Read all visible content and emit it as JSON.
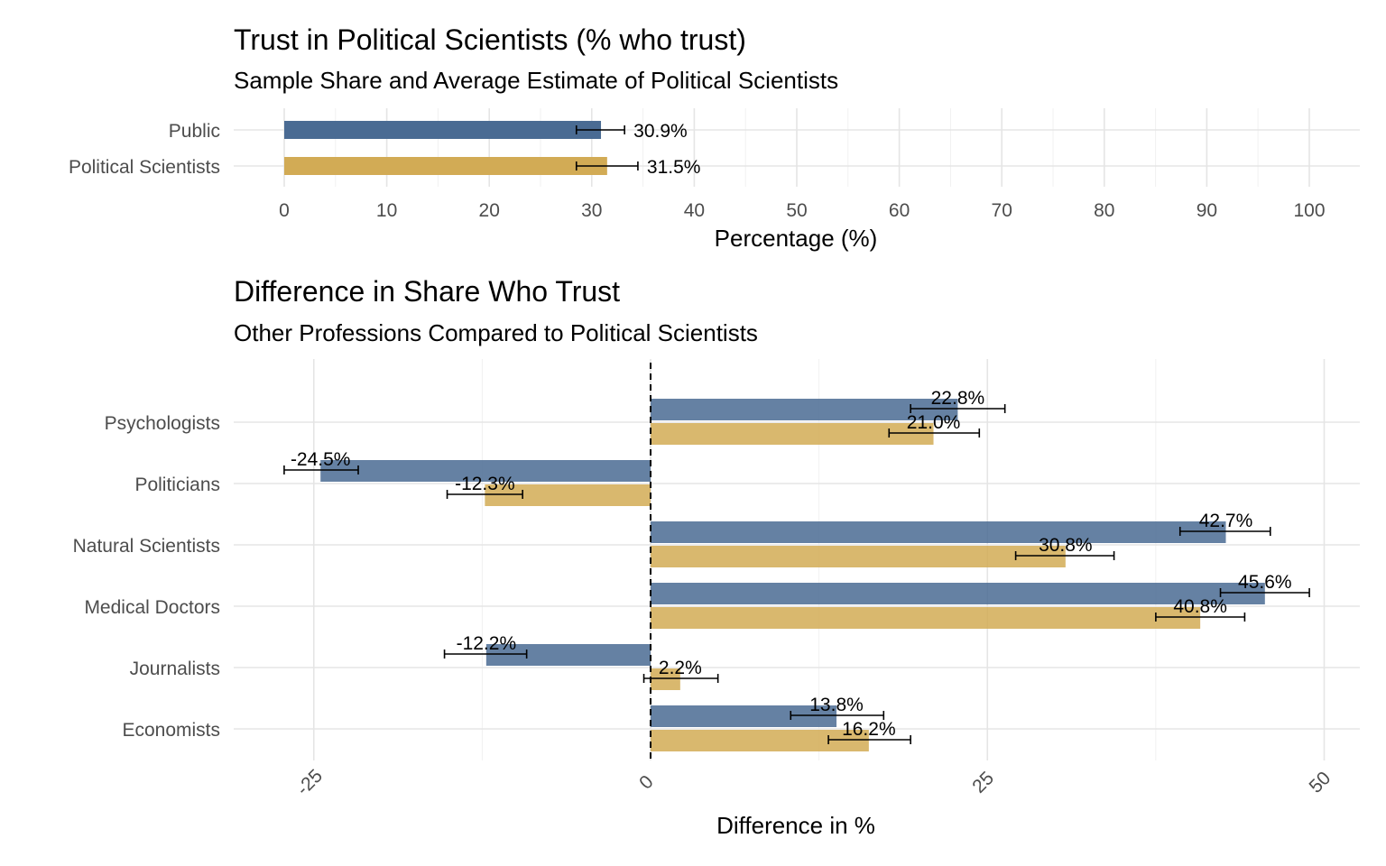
{
  "colors": {
    "public": "#4a6b93",
    "political_scientists": "#d2ab55"
  },
  "chart_data": [
    {
      "type": "bar",
      "orientation": "horizontal",
      "title": "Trust in Political Scientists (% who trust)",
      "subtitle": "Sample Share and Average Estimate of Political Scientists",
      "xlabel": "Percentage (%)",
      "xlim": [
        0,
        100
      ],
      "xticks": [
        0,
        10,
        20,
        30,
        40,
        50,
        60,
        70,
        80,
        90,
        100
      ],
      "categories": [
        "Public",
        "Political Scientists"
      ],
      "values": [
        30.9,
        31.5
      ],
      "error_low": [
        28.5,
        28.5
      ],
      "error_high": [
        33.2,
        34.5
      ],
      "labels": [
        "30.9%",
        "31.5%"
      ],
      "grid": true
    },
    {
      "type": "bar",
      "orientation": "horizontal",
      "grouped": true,
      "title": "Difference in Share Who Trust",
      "subtitle": "Other Professions Compared to Political Scientists",
      "xlabel": "Difference in  %",
      "xlim": [
        -27,
        50
      ],
      "xticks": [
        -25,
        0,
        25,
        50
      ],
      "reference_line": 0,
      "categories": [
        "Psychologists",
        "Politicians",
        "Natural Scientists",
        "Medical Doctors",
        "Journalists",
        "Economists"
      ],
      "series": [
        {
          "key": "public",
          "values": [
            22.8,
            -24.5,
            42.7,
            45.6,
            -12.2,
            13.8
          ],
          "error_low": [
            19.3,
            -27.2,
            39.3,
            42.3,
            -15.3,
            10.4
          ],
          "error_high": [
            26.3,
            -21.7,
            46.0,
            48.9,
            -9.2,
            17.3
          ],
          "labels": [
            "22.8%",
            "-24.5%",
            "42.7%",
            "45.6%",
            "-12.2%",
            "13.8%"
          ]
        },
        {
          "key": "political_scientists",
          "values": [
            21.0,
            -12.3,
            30.8,
            40.8,
            2.2,
            16.2
          ],
          "error_low": [
            17.7,
            -15.1,
            27.1,
            37.5,
            -0.5,
            13.2
          ],
          "error_high": [
            24.4,
            -9.5,
            34.4,
            44.1,
            5.0,
            19.3
          ],
          "labels": [
            "21.0%",
            "-12.3%",
            "30.8%",
            "40.8%",
            "2.2%",
            "16.2%"
          ]
        }
      ],
      "grid": true
    }
  ]
}
